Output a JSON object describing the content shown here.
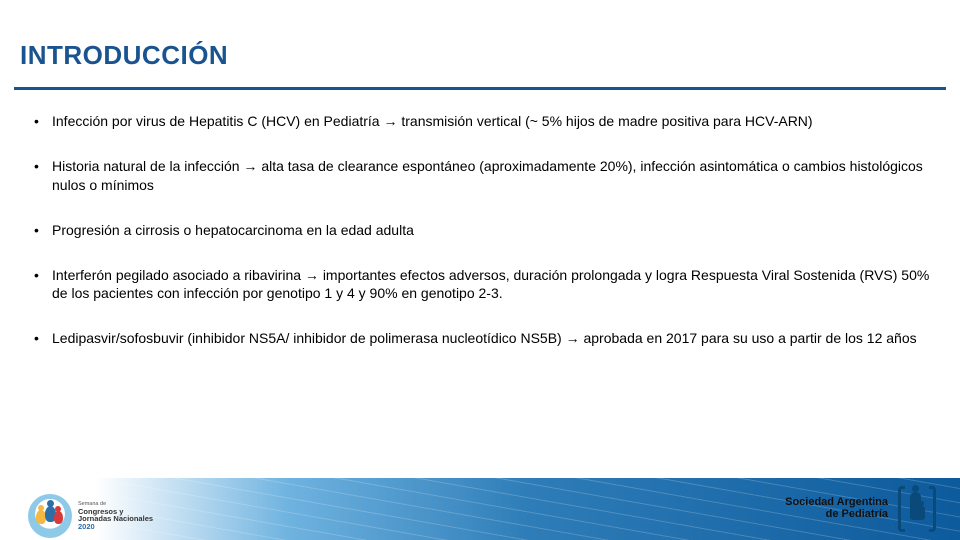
{
  "title": "INTRODUCCIÓN",
  "colors": {
    "title": "#1a5490",
    "underline": "#1a5490",
    "text": "#000000",
    "footer_gradient": [
      "#ffffff",
      "#6fb3e0",
      "#2e7db8",
      "#0d5a9c"
    ]
  },
  "typography": {
    "title_fontsize": 26,
    "bullet_fontsize": 14
  },
  "bullets": [
    "Infección por virus de Hepatitis C (HCV) en Pediatría → transmisión vertical (~ 5% hijos de madre positiva para HCV-ARN)",
    "Historia natural de la infección → alta tasa de clearance espontáneo (aproximadamente 20%), infección asintomática o cambios histológicos nulos o mínimos",
    "Progresión a cirrosis o hepatocarcinoma en la edad adulta",
    "Interferón pegilado asociado a ribavirina → importantes efectos adversos, duración prolongada y logra Respuesta Viral Sostenida (RVS) 50% de los pacientes con infección por genotipo 1 y 4 y 90% en genotipo 2-3.",
    "Ledipasvir/sofosbuvir (inhibidor NS5A/ inhibidor de polimerasa nucleotídico NS5B) → aprobada en 2017 para su uso a partir de los 12 años"
  ],
  "footer": {
    "left": {
      "line1_small": "Semana de",
      "line2_bold": "Congresos y",
      "line3_bold": "Jornadas Nacionales",
      "year": "2020"
    },
    "right": {
      "line1": "Sociedad Argentina",
      "line2": "de Pediatría"
    }
  }
}
